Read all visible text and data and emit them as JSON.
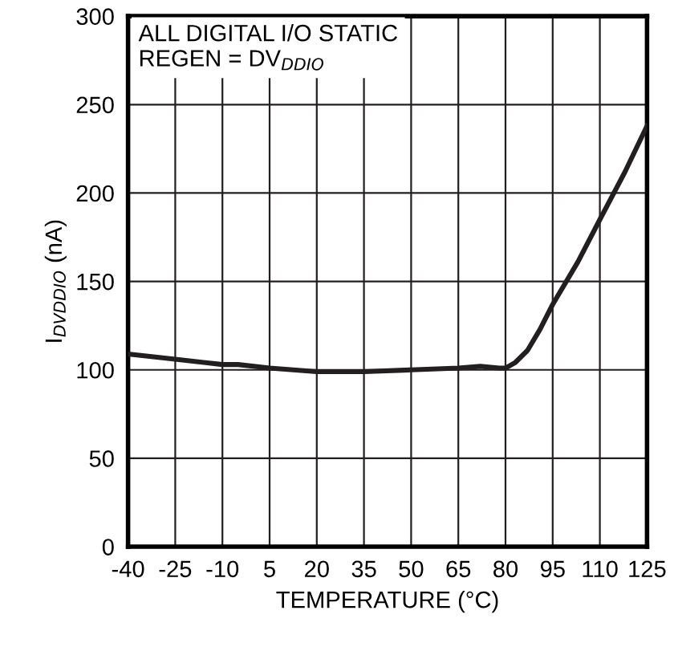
{
  "chart_data": {
    "type": "line",
    "xlabel": "TEMPERATURE (°C)",
    "ylabel": "I$_{DVDDIO}$ (nA)",
    "annotations": [
      "ALL DIGITAL I/O STATIC\nREGEN = DV$_{DDIO}$"
    ],
    "x": [
      -40,
      -25,
      -10,
      -5,
      5,
      20,
      35,
      50,
      65,
      72,
      78,
      80,
      83,
      87,
      91,
      95,
      103,
      110,
      118,
      125
    ],
    "series": [
      {
        "color": "#231f20",
        "values": [
          109,
          106,
          103,
          103,
          101,
          99,
          99,
          100,
          101,
          102,
          101,
          101,
          104,
          111,
          123,
          137,
          161,
          185,
          212,
          238
        ]
      }
    ],
    "xlim": [
      -40,
      125
    ],
    "xticks": [
      -40,
      -25,
      -10,
      5,
      20,
      35,
      50,
      65,
      80,
      95,
      110,
      125
    ],
    "ylim": [
      0,
      300
    ],
    "yticks": [
      0,
      50,
      100,
      150,
      200,
      250,
      300
    ],
    "grid": true,
    "legend": false,
    "marker": "none",
    "line_style": "solid"
  }
}
